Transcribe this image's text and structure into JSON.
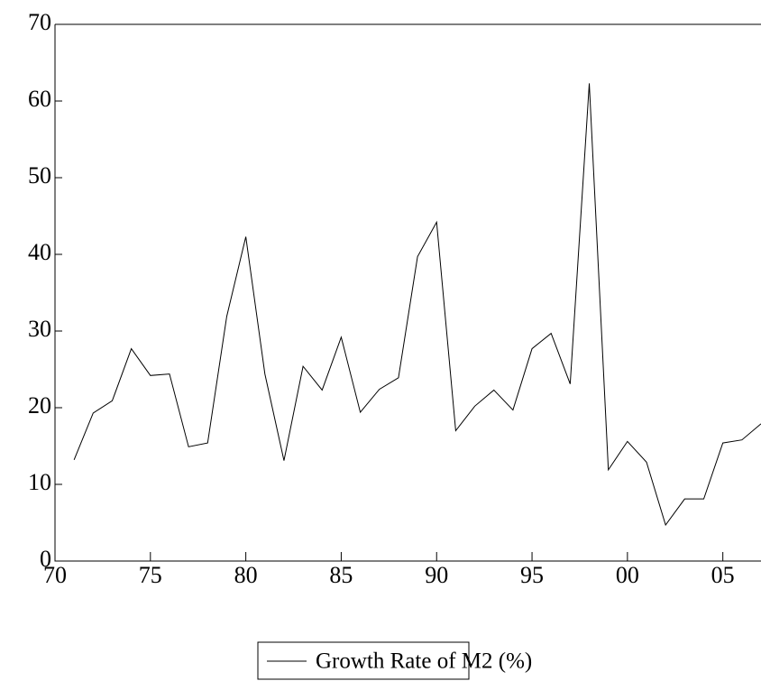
{
  "chart_data": {
    "type": "line",
    "x": [
      1971,
      1972,
      1973,
      1974,
      1975,
      1976,
      1977,
      1978,
      1979,
      1980,
      1981,
      1982,
      1983,
      1984,
      1985,
      1986,
      1987,
      1988,
      1989,
      1990,
      1991,
      1992,
      1993,
      1994,
      1995,
      1996,
      1997,
      1998,
      1999,
      2000,
      2001,
      2002,
      2003,
      2004,
      2005,
      2006,
      2007
    ],
    "series": [
      {
        "name": "Growth Rate of M2 (%)",
        "color": "#000000",
        "values": [
          13.2,
          19.3,
          20.9,
          27.7,
          24.2,
          24.4,
          14.9,
          15.4,
          31.9,
          42.3,
          24.4,
          13.1,
          25.4,
          22.3,
          29.2,
          19.4,
          22.4,
          23.9,
          39.7,
          44.2,
          17.0,
          20.2,
          22.3,
          19.7,
          27.7,
          29.7,
          23.1,
          62.3,
          11.9,
          15.6,
          12.9,
          4.7,
          8.1,
          8.1,
          15.4,
          15.8,
          17.9
        ]
      }
    ],
    "xlim": [
      1970,
      2007
    ],
    "xticks": [
      {
        "value": 1970,
        "label": "70"
      },
      {
        "value": 1975,
        "label": "75"
      },
      {
        "value": 1980,
        "label": "80"
      },
      {
        "value": 1985,
        "label": "85"
      },
      {
        "value": 1990,
        "label": "90"
      },
      {
        "value": 1995,
        "label": "95"
      },
      {
        "value": 2000,
        "label": "00"
      },
      {
        "value": 2005,
        "label": "05"
      }
    ],
    "ylim": [
      0,
      70
    ],
    "yticks": [
      0,
      10,
      20,
      30,
      40,
      50,
      60,
      70
    ],
    "legend": "bottom"
  }
}
